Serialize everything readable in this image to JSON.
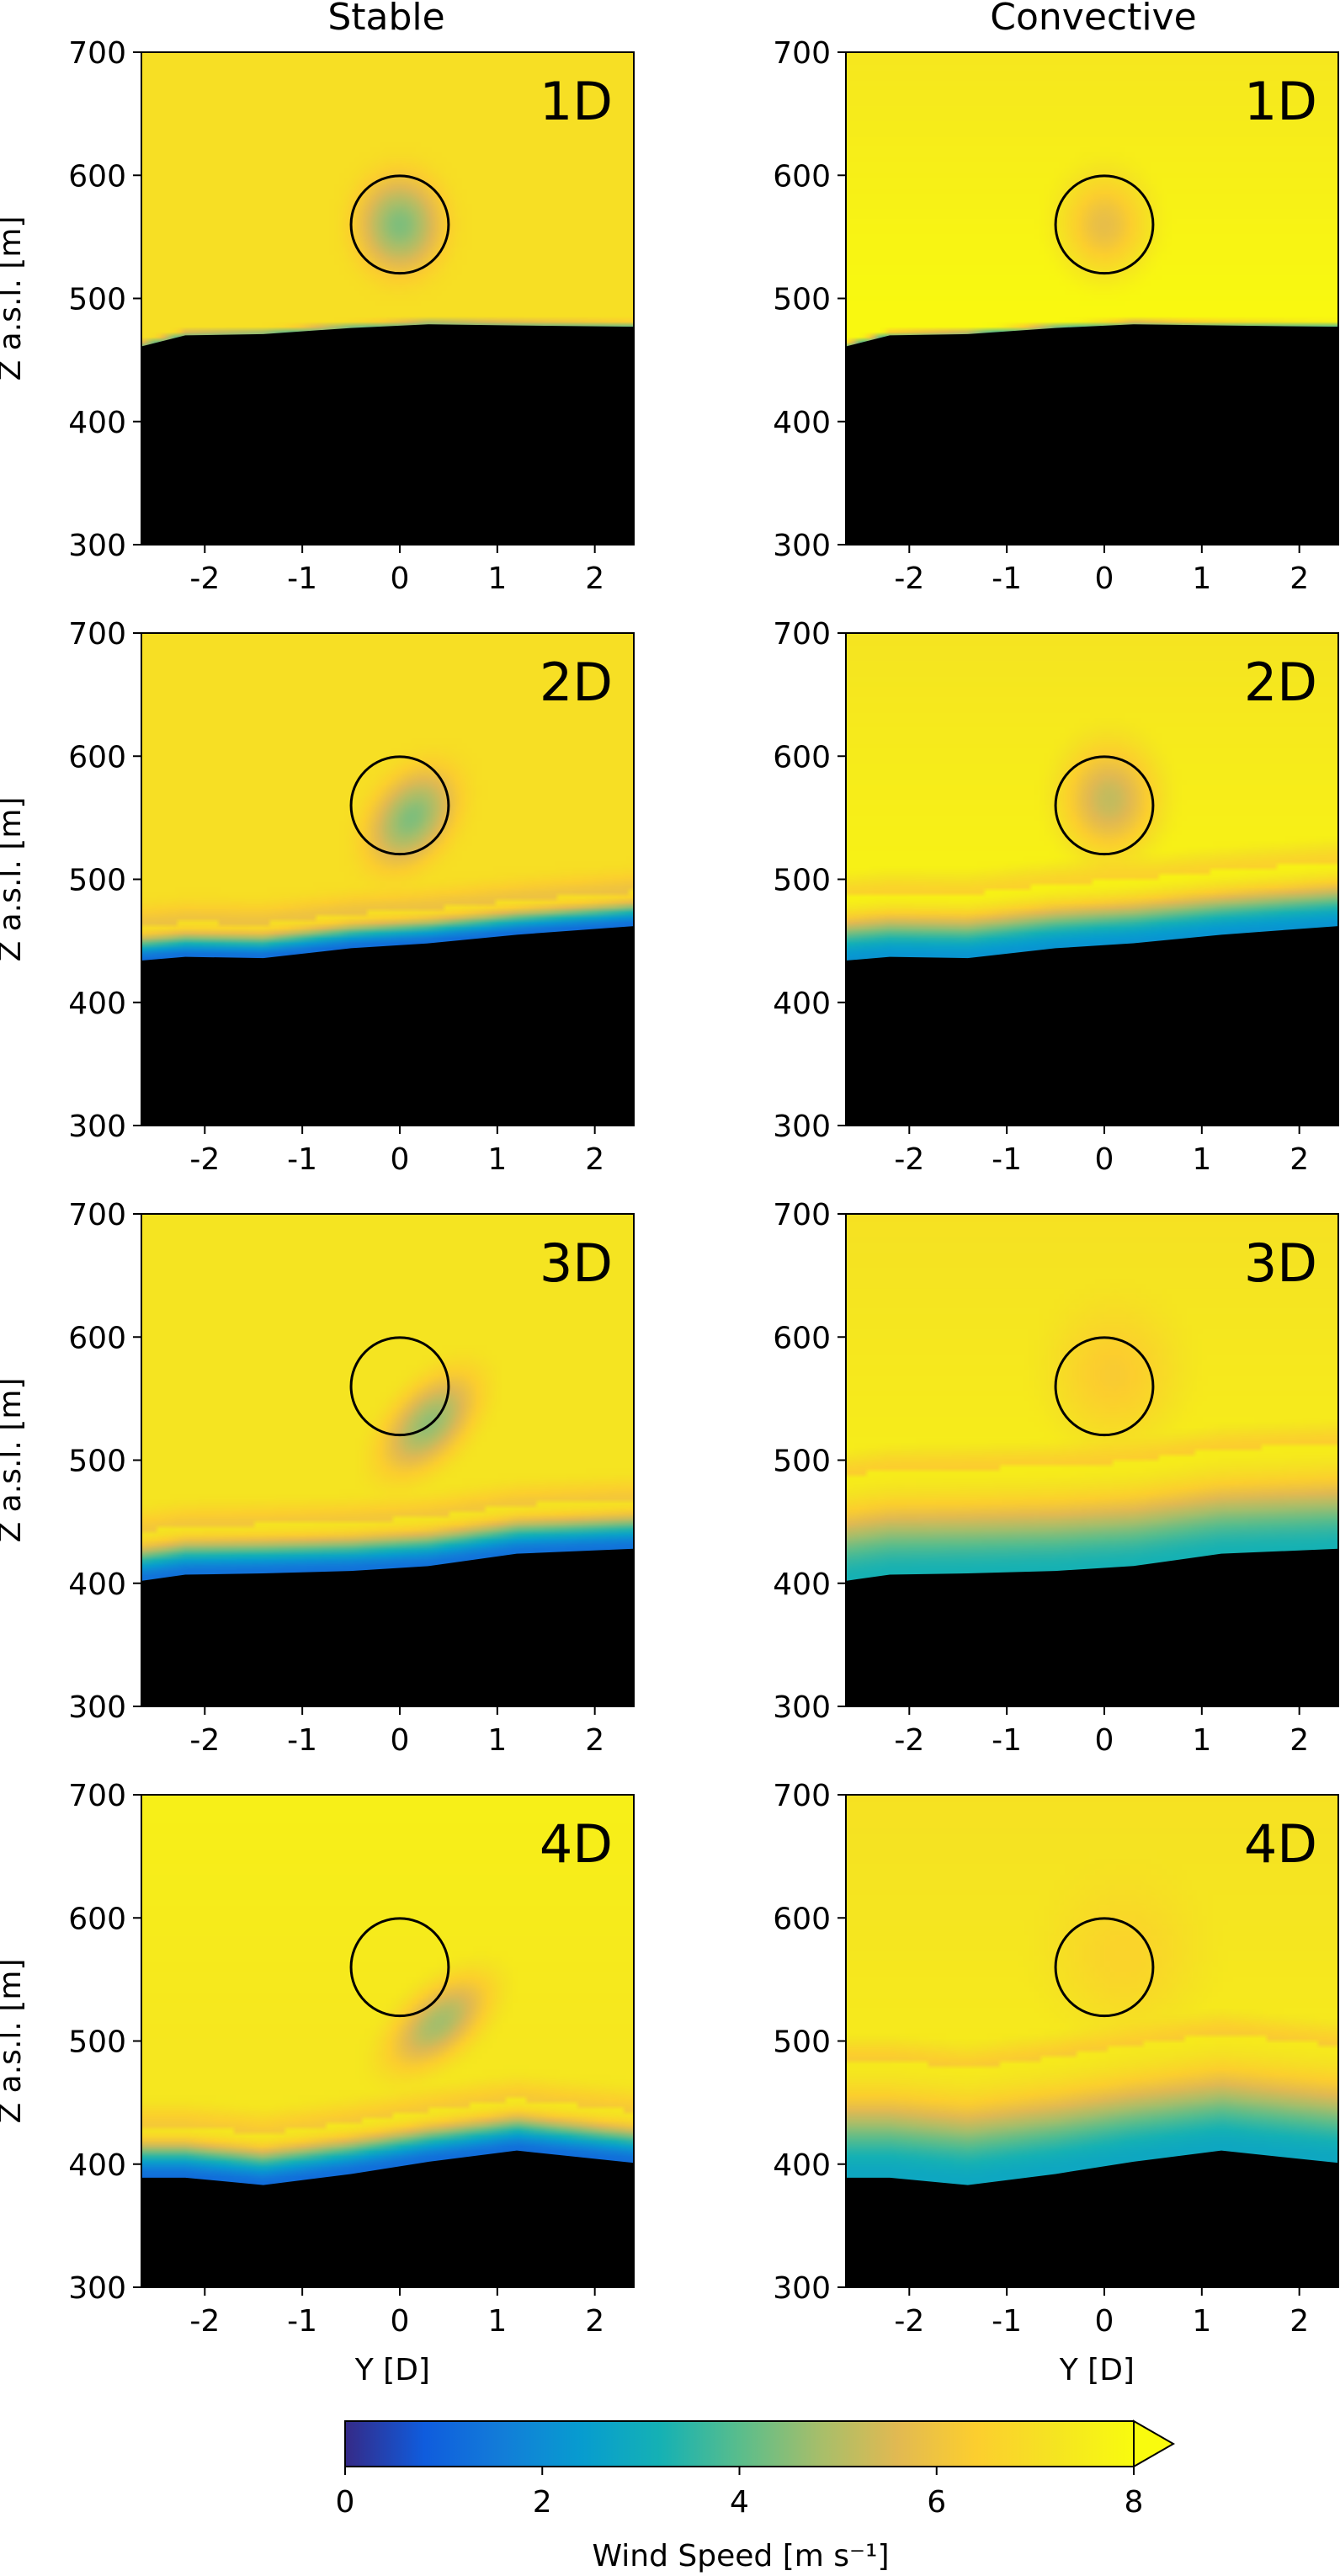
{
  "chart_data": {
    "type": "heatmap",
    "columns": [
      "Stable",
      "Convective"
    ],
    "ylabel": "Z a.s.l. [m]",
    "xlabel": "Y [D]",
    "xlim": [
      -2.65,
      2.4
    ],
    "ylim": [
      300,
      700
    ],
    "x_ticks": [
      -2,
      -1,
      0,
      1,
      2
    ],
    "y_ticks": [
      300,
      400,
      500,
      600,
      700
    ],
    "colorbar": {
      "label": "Wind Speed [m s⁻¹]",
      "range": [
        0,
        8
      ],
      "ticks": [
        0,
        2,
        4,
        6,
        8
      ],
      "extend": "max",
      "colormap": "parula"
    },
    "rotor": {
      "center_y": 0,
      "center_z": 560,
      "diameter_label": "D"
    },
    "panels": [
      {
        "label": "1D",
        "column": "Stable",
        "ground_z": [
          [
            -2.65,
            461
          ],
          [
            -2.2,
            470
          ],
          [
            -1.4,
            471
          ],
          [
            -0.5,
            476
          ],
          [
            0.3,
            479
          ],
          [
            1.2,
            478
          ],
          [
            2.4,
            477
          ]
        ],
        "ambient": 7.0,
        "top": 7.0,
        "shear_width": 6,
        "layer_thickness": 0,
        "layer_min": 4.2,
        "wake": {
          "dy": 0,
          "dz": 0,
          "rx": 0.55,
          "ry": 0.5,
          "rot": 0,
          "min": 4.4
        }
      },
      {
        "label": "1D",
        "column": "Convective",
        "ground_z": [
          [
            -2.65,
            461
          ],
          [
            -2.2,
            470
          ],
          [
            -1.4,
            471
          ],
          [
            -0.5,
            476
          ],
          [
            0.3,
            479
          ],
          [
            1.2,
            478
          ],
          [
            2.4,
            477
          ]
        ],
        "ambient": 7.9,
        "top": 7.3,
        "shear_width": 5,
        "layer_thickness": 0,
        "layer_min": 4.0,
        "wake": {
          "dy": 0,
          "dz": 0,
          "rx": 0.55,
          "ry": 0.5,
          "rot": 0,
          "min": 5.8
        }
      },
      {
        "label": "2D",
        "column": "Stable",
        "ground_z": [
          [
            -2.65,
            434
          ],
          [
            -2.2,
            437
          ],
          [
            -1.4,
            436
          ],
          [
            -0.5,
            444
          ],
          [
            0.3,
            448
          ],
          [
            1.2,
            455
          ],
          [
            2.4,
            462
          ]
        ],
        "ambient": 7.0,
        "top": 7.0,
        "shear_width": 10,
        "layer_thickness": 28,
        "layer_min": 1.2,
        "wake": {
          "dy": 0.12,
          "dz": -10,
          "rx": 0.62,
          "ry": 0.42,
          "rot": -35,
          "min": 4.4
        }
      },
      {
        "label": "2D",
        "column": "Convective",
        "ground_z": [
          [
            -2.65,
            434
          ],
          [
            -2.2,
            437
          ],
          [
            -1.4,
            436
          ],
          [
            -0.5,
            444
          ],
          [
            0.3,
            448
          ],
          [
            1.2,
            455
          ],
          [
            2.4,
            462
          ]
        ],
        "ambient": 7.7,
        "top": 7.2,
        "shear_width": 10,
        "layer_thickness": 52,
        "layer_min": 2.2,
        "wake": {
          "dy": 0.05,
          "dz": 5,
          "rx": 0.6,
          "ry": 0.55,
          "rot": 0,
          "min": 5.2
        }
      },
      {
        "label": "3D",
        "column": "Stable",
        "ground_z": [
          [
            -2.65,
            402
          ],
          [
            -2.2,
            407
          ],
          [
            -1.4,
            408
          ],
          [
            -0.5,
            410
          ],
          [
            0.3,
            414
          ],
          [
            1.2,
            424
          ],
          [
            2.4,
            428
          ]
        ],
        "ambient": 7.2,
        "top": 7.2,
        "shear_width": 16,
        "layer_thickness": 40,
        "layer_min": 1.3,
        "wake": {
          "dy": 0.3,
          "dz": -30,
          "rx": 0.7,
          "ry": 0.38,
          "rot": -35,
          "min": 4.6
        }
      },
      {
        "label": "3D",
        "column": "Convective",
        "ground_z": [
          [
            -2.65,
            402
          ],
          [
            -2.2,
            407
          ],
          [
            -1.4,
            408
          ],
          [
            -0.5,
            410
          ],
          [
            0.3,
            414
          ],
          [
            1.2,
            424
          ],
          [
            2.4,
            428
          ]
        ],
        "ambient": 7.5,
        "top": 7.1,
        "shear_width": 16,
        "layer_thickness": 85,
        "layer_min": 3.2,
        "wake": {
          "dy": 0.1,
          "dz": 10,
          "rx": 0.75,
          "ry": 0.65,
          "rot": 0,
          "min": 6.3
        }
      },
      {
        "label": "4D",
        "column": "Stable",
        "ground_z": [
          [
            -2.65,
            389
          ],
          [
            -2.2,
            389
          ],
          [
            -1.4,
            383
          ],
          [
            -0.5,
            392
          ],
          [
            0.3,
            402
          ],
          [
            1.2,
            411
          ],
          [
            2.4,
            401
          ]
        ],
        "ambient": 7.3,
        "top": 7.6,
        "shear_width": 18,
        "layer_thickness": 42,
        "layer_min": 1.2,
        "wake": {
          "dy": 0.4,
          "dz": -45,
          "rx": 0.72,
          "ry": 0.35,
          "rot": -30,
          "min": 4.8
        }
      },
      {
        "label": "4D",
        "column": "Convective",
        "ground_z": [
          [
            -2.65,
            389
          ],
          [
            -2.2,
            389
          ],
          [
            -1.4,
            383
          ],
          [
            -0.5,
            392
          ],
          [
            0.3,
            402
          ],
          [
            1.2,
            411
          ],
          [
            2.4,
            401
          ]
        ],
        "ambient": 7.4,
        "top": 7.1,
        "shear_width": 22,
        "layer_thickness": 95,
        "layer_min": 2.8,
        "wake": {
          "dy": 0.2,
          "dz": 10,
          "rx": 0.85,
          "ry": 0.7,
          "rot": 0,
          "min": 6.6
        }
      }
    ]
  },
  "colors": {
    "ground": "#000000",
    "frame": "#000000"
  }
}
